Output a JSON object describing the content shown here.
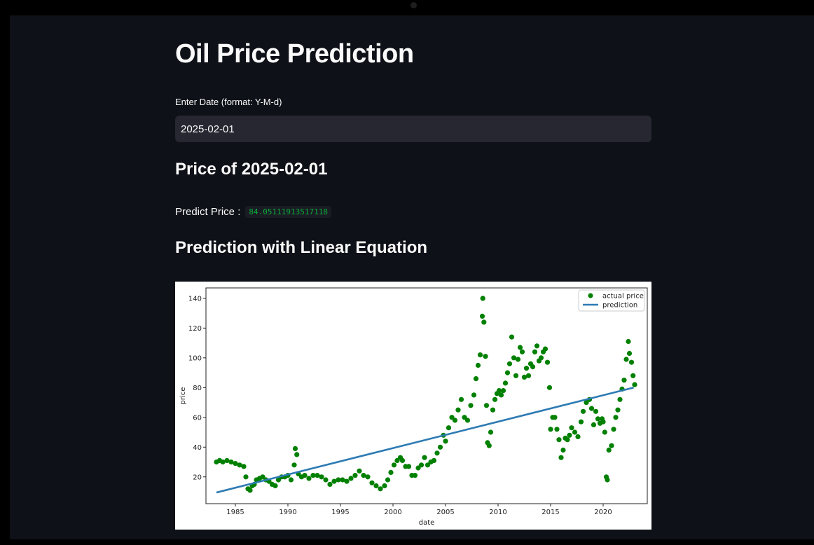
{
  "app": {
    "title": "Oil Price Prediction",
    "date_input": {
      "label": "Enter Date (format: Y-M-d)",
      "value": "2025-02-01"
    },
    "price_heading": "Price of 2025-02-01",
    "predict_label": "Predict Price :",
    "predict_value": "84.05111913517118",
    "linear_heading": "Prediction with Linear Equation"
  },
  "colors": {
    "background": "#0e1117",
    "input_bg": "#262730",
    "code_green": "#09ab3b",
    "scatter": "#008000",
    "line": "#2e7bb4"
  },
  "chart_data": {
    "type": "scatter",
    "xlabel": "date",
    "ylabel": "price",
    "xlim": [
      1982.2,
      2024.2
    ],
    "ylim": [
      2,
      147
    ],
    "x_ticks": [
      1985,
      1990,
      1995,
      2000,
      2005,
      2010,
      2015,
      2020
    ],
    "y_ticks": [
      20,
      40,
      60,
      80,
      100,
      120,
      140
    ],
    "legend": {
      "position": "top-right",
      "entries": [
        "actual price",
        "prediction"
      ]
    },
    "series": [
      {
        "name": "actual price",
        "kind": "scatter",
        "points": [
          [
            1983.2,
            30
          ],
          [
            1983.5,
            31
          ],
          [
            1983.8,
            30
          ],
          [
            1984.2,
            31
          ],
          [
            1984.6,
            30
          ],
          [
            1985.0,
            29
          ],
          [
            1985.4,
            28
          ],
          [
            1985.8,
            27
          ],
          [
            1986.0,
            20
          ],
          [
            1986.2,
            12
          ],
          [
            1986.4,
            11
          ],
          [
            1986.6,
            14
          ],
          [
            1986.8,
            15
          ],
          [
            1987.0,
            18
          ],
          [
            1987.3,
            19
          ],
          [
            1987.6,
            20
          ],
          [
            1987.9,
            18
          ],
          [
            1988.2,
            17
          ],
          [
            1988.5,
            15
          ],
          [
            1988.8,
            14
          ],
          [
            1989.1,
            18
          ],
          [
            1989.4,
            20
          ],
          [
            1989.7,
            20
          ],
          [
            1990.0,
            21
          ],
          [
            1990.3,
            18
          ],
          [
            1990.6,
            28
          ],
          [
            1990.7,
            39
          ],
          [
            1990.85,
            35
          ],
          [
            1991.0,
            22
          ],
          [
            1991.3,
            20
          ],
          [
            1991.6,
            21
          ],
          [
            1992.0,
            19
          ],
          [
            1992.4,
            21
          ],
          [
            1992.8,
            21
          ],
          [
            1993.2,
            20
          ],
          [
            1993.6,
            18
          ],
          [
            1994.0,
            15
          ],
          [
            1994.4,
            17
          ],
          [
            1994.8,
            18
          ],
          [
            1995.2,
            18
          ],
          [
            1995.6,
            17
          ],
          [
            1996.0,
            19
          ],
          [
            1996.4,
            21
          ],
          [
            1996.8,
            24
          ],
          [
            1997.2,
            21
          ],
          [
            1997.6,
            20
          ],
          [
            1998.0,
            16
          ],
          [
            1998.4,
            14
          ],
          [
            1998.8,
            12
          ],
          [
            1999.2,
            14
          ],
          [
            1999.5,
            18
          ],
          [
            1999.8,
            23
          ],
          [
            2000.1,
            28
          ],
          [
            2000.4,
            31
          ],
          [
            2000.7,
            33
          ],
          [
            2000.9,
            31
          ],
          [
            2001.2,
            27
          ],
          [
            2001.5,
            27
          ],
          [
            2001.8,
            21
          ],
          [
            2002.1,
            21
          ],
          [
            2002.4,
            26
          ],
          [
            2002.7,
            28
          ],
          [
            2003.0,
            33
          ],
          [
            2003.3,
            28
          ],
          [
            2003.6,
            30
          ],
          [
            2003.9,
            31
          ],
          [
            2004.2,
            36
          ],
          [
            2004.5,
            40
          ],
          [
            2004.8,
            48
          ],
          [
            2005.0,
            44
          ],
          [
            2005.3,
            53
          ],
          [
            2005.6,
            60
          ],
          [
            2005.9,
            58
          ],
          [
            2006.2,
            65
          ],
          [
            2006.5,
            72
          ],
          [
            2006.8,
            60
          ],
          [
            2007.1,
            58
          ],
          [
            2007.4,
            68
          ],
          [
            2007.7,
            75
          ],
          [
            2007.9,
            86
          ],
          [
            2008.1,
            95
          ],
          [
            2008.3,
            102
          ],
          [
            2008.5,
            128
          ],
          [
            2008.55,
            140
          ],
          [
            2008.65,
            124
          ],
          [
            2008.8,
            101
          ],
          [
            2008.9,
            68
          ],
          [
            2009.0,
            43
          ],
          [
            2009.15,
            41
          ],
          [
            2009.3,
            50
          ],
          [
            2009.5,
            65
          ],
          [
            2009.7,
            72
          ],
          [
            2009.9,
            76
          ],
          [
            2010.1,
            78
          ],
          [
            2010.3,
            75
          ],
          [
            2010.5,
            78
          ],
          [
            2010.7,
            83
          ],
          [
            2010.9,
            90
          ],
          [
            2011.1,
            96
          ],
          [
            2011.3,
            114
          ],
          [
            2011.5,
            100
          ],
          [
            2011.7,
            88
          ],
          [
            2011.9,
            99
          ],
          [
            2012.1,
            107
          ],
          [
            2012.3,
            104
          ],
          [
            2012.5,
            87
          ],
          [
            2012.7,
            93
          ],
          [
            2012.9,
            88
          ],
          [
            2013.1,
            96
          ],
          [
            2013.3,
            94
          ],
          [
            2013.5,
            104
          ],
          [
            2013.7,
            108
          ],
          [
            2013.9,
            98
          ],
          [
            2014.1,
            100
          ],
          [
            2014.3,
            104
          ],
          [
            2014.5,
            106
          ],
          [
            2014.7,
            97
          ],
          [
            2014.9,
            80
          ],
          [
            2015.0,
            52
          ],
          [
            2015.2,
            60
          ],
          [
            2015.4,
            60
          ],
          [
            2015.6,
            52
          ],
          [
            2015.8,
            45
          ],
          [
            2016.0,
            33
          ],
          [
            2016.2,
            38
          ],
          [
            2016.4,
            46
          ],
          [
            2016.6,
            45
          ],
          [
            2016.8,
            48
          ],
          [
            2017.0,
            53
          ],
          [
            2017.3,
            50
          ],
          [
            2017.6,
            47
          ],
          [
            2017.9,
            57
          ],
          [
            2018.1,
            64
          ],
          [
            2018.4,
            70
          ],
          [
            2018.7,
            72
          ],
          [
            2018.9,
            66
          ],
          [
            2019.1,
            55
          ],
          [
            2019.3,
            64
          ],
          [
            2019.5,
            59
          ],
          [
            2019.7,
            56
          ],
          [
            2019.9,
            59
          ],
          [
            2020.0,
            57
          ],
          [
            2020.15,
            50
          ],
          [
            2020.3,
            20
          ],
          [
            2020.4,
            18
          ],
          [
            2020.55,
            38
          ],
          [
            2020.8,
            41
          ],
          [
            2021.0,
            52
          ],
          [
            2021.2,
            60
          ],
          [
            2021.4,
            65
          ],
          [
            2021.6,
            72
          ],
          [
            2021.8,
            79
          ],
          [
            2022.0,
            85
          ],
          [
            2022.2,
            99
          ],
          [
            2022.4,
            111
          ],
          [
            2022.5,
            103
          ],
          [
            2022.7,
            97
          ],
          [
            2022.85,
            88
          ],
          [
            2023.0,
            82
          ]
        ]
      },
      {
        "name": "prediction",
        "kind": "line",
        "x": [
          1983.2,
          2022.9
        ],
        "y": [
          9.5,
          80
        ]
      }
    ]
  }
}
